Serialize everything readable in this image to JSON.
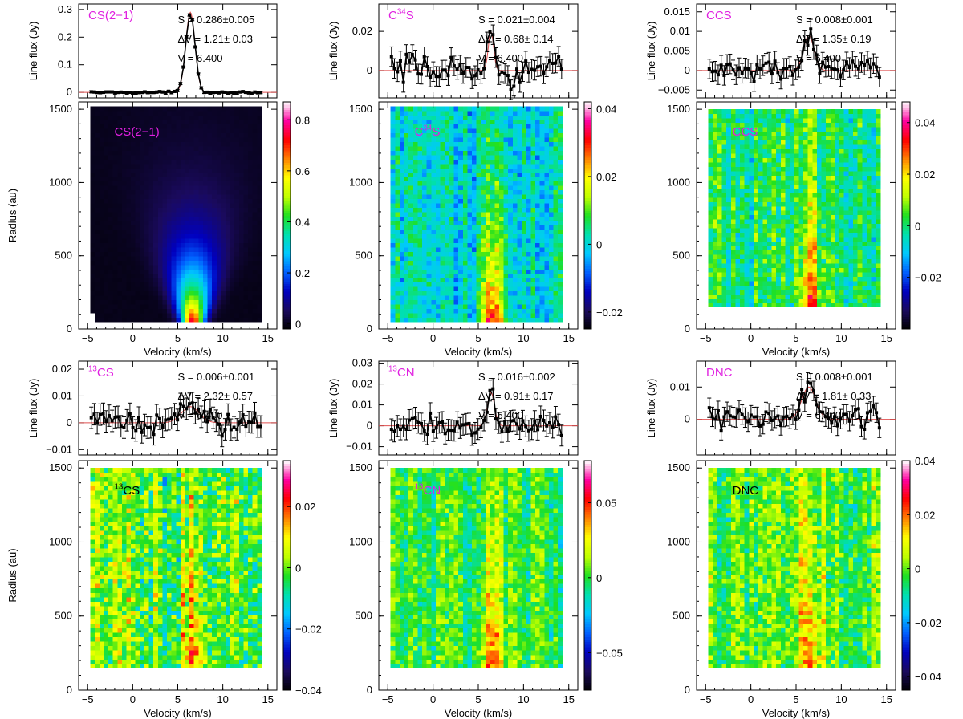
{
  "figure": {
    "spectrum_ylabel": "Line flux (Jy)",
    "map_ylabel": "Radius (au)",
    "map_xlabel": "Velocity (km/s)",
    "xlim": [
      -6,
      16
    ],
    "x_ticks": [
      -5,
      0,
      5,
      10,
      15
    ],
    "map_ylim": [
      0,
      1550
    ],
    "map_y_ticks": [
      0,
      500,
      1000,
      1500
    ],
    "line_label_color": "#e020e0",
    "fit_color": "#e05050",
    "colormap": [
      "#000000",
      "#1a0a5e",
      "#0000c0",
      "#0060ff",
      "#00c8ff",
      "#00e0b0",
      "#20e020",
      "#c0ff00",
      "#ffff00",
      "#ff8000",
      "#ff0000",
      "#ff00a0",
      "#ffffff"
    ]
  },
  "chart_data": [
    {
      "type": "line",
      "label": "CS(2−1)",
      "label_color": "#e020e0",
      "ylabel": "Line flux (Jy)",
      "xlim": [
        -6,
        16
      ],
      "ylim": [
        -0.02,
        0.32
      ],
      "y_ticks": [
        0,
        0.1,
        0.2,
        0.3
      ],
      "y_tick_labels": [
        "0",
        "0.1",
        "0.2",
        "0.3"
      ],
      "fit_lines": [
        "S  =  0.286±0.005",
        "ΔV  =   1.21± 0.03",
        "V  =   6.400"
      ],
      "fit": {
        "S": 0.286,
        "dV": 1.21,
        "V": 6.4
      },
      "peak": {
        "v": 6.4,
        "amp": 0.29,
        "width": 1.21
      },
      "noise": 0.002,
      "errbar": 0.004
    },
    {
      "type": "line",
      "label_pre": "C",
      "label_sup": "34",
      "label_post": "S",
      "label_color": "#e020e0",
      "ylabel": "Line flux (Jy)",
      "xlim": [
        -6,
        16
      ],
      "ylim": [
        -0.014,
        0.034
      ],
      "y_ticks": [
        0,
        0.02
      ],
      "y_tick_labels": [
        "0",
        "0.02"
      ],
      "fit_lines": [
        "S  =  0.021±0.004",
        "ΔV  =   0.68± 0.14",
        "V  =   6.400"
      ],
      "fit": {
        "S": 0.021,
        "dV": 0.68,
        "V": 6.4
      },
      "peak": {
        "v": 6.4,
        "amp": 0.02,
        "width": 0.68
      },
      "noise": 0.005,
      "errbar": 0.005
    },
    {
      "type": "line",
      "label": "CCS",
      "label_color": "#e020e0",
      "ylabel": "Line flux (Jy)",
      "xlim": [
        -6,
        16
      ],
      "ylim": [
        -0.007,
        0.017
      ],
      "y_ticks": [
        -0.005,
        0,
        0.005,
        0.01,
        0.015
      ],
      "y_tick_labels": [
        "−0.005",
        "0",
        "0.005",
        "0.01",
        "0.015"
      ],
      "fit_lines": [
        "S  =  0.008±0.001",
        "ΔV  =   1.35± 0.19",
        "V  =   6.400"
      ],
      "fit": {
        "S": 0.008,
        "dV": 1.35,
        "V": 6.4
      },
      "peak": {
        "v": 6.4,
        "amp": 0.009,
        "width": 1.35
      },
      "noise": 0.0018,
      "errbar": 0.0025
    },
    {
      "type": "line",
      "label_pre": "",
      "label_sup": "13",
      "label_post": "CS",
      "label_color": "#e020e0",
      "ylabel": "Line flux (Jy)",
      "xlim": [
        -6,
        16
      ],
      "ylim": [
        -0.012,
        0.023
      ],
      "y_ticks": [
        -0.01,
        0,
        0.01,
        0.02
      ],
      "y_tick_labels": [
        "−0.01",
        "0",
        "0.01",
        "0.02"
      ],
      "fit_lines": [
        "S  =  0.006±0.001",
        "ΔV  =   2.32± 0.57",
        "V  =   6.400"
      ],
      "fit": {
        "S": 0.006,
        "dV": 2.32,
        "V": 6.4
      },
      "peak": {
        "v": 6.4,
        "amp": 0.006,
        "width": 2.32
      },
      "noise": 0.003,
      "errbar": 0.004
    },
    {
      "type": "line",
      "label_pre": "",
      "label_sup": "13",
      "label_post": "CN",
      "label_color": "#e020e0",
      "ylabel": "Line flux (Jy)",
      "xlim": [
        -6,
        16
      ],
      "ylim": [
        -0.014,
        0.031
      ],
      "y_ticks": [
        -0.01,
        0,
        0.01,
        0.02,
        0.03
      ],
      "y_tick_labels": [
        "−0.01",
        "0",
        "0.01",
        "0.02",
        "0.03"
      ],
      "fit_lines": [
        "S  =  0.016±0.002",
        "ΔV  =   0.91± 0.17",
        "V  =   6.400"
      ],
      "fit": {
        "S": 0.016,
        "dV": 0.91,
        "V": 6.4
      },
      "peak": {
        "v": 6.4,
        "amp": 0.016,
        "width": 0.91
      },
      "noise": 0.003,
      "errbar": 0.005
    },
    {
      "type": "line",
      "label": "DNC",
      "label_color": "#e020e0",
      "ylabel": "Line flux (Jy)",
      "xlim": [
        -6,
        16
      ],
      "ylim": [
        -0.011,
        0.018
      ],
      "y_ticks": [
        0,
        0.01
      ],
      "y_tick_labels": [
        "0",
        "0.01"
      ],
      "fit_lines": [
        "S  =  0.008±0.001",
        "ΔV  =   1.81± 0.33",
        "V  =   6.400"
      ],
      "fit": {
        "S": 0.008,
        "dV": 1.81,
        "V": 6.4
      },
      "peak": {
        "v": 6.4,
        "amp": 0.01,
        "width": 1.81
      },
      "noise": 0.0025,
      "errbar": 0.003
    },
    {
      "type": "heatmap",
      "label": "CS(2−1)",
      "label_color": "#e020e0",
      "xlabel": "Velocity (km/s)",
      "ylabel": "Radius (au)",
      "xlim": [
        -6,
        16
      ],
      "ylim": [
        0,
        1550
      ],
      "cmin": -0.02,
      "cmax": 0.87,
      "cbar_ticks": [
        0,
        0.2,
        0.4,
        0.6,
        0.8
      ],
      "cbar_tick_labels": [
        "0",
        "0.2",
        "0.4",
        "0.6",
        "0.8"
      ],
      "v_range": [
        -4.7,
        14.3
      ],
      "r_range": [
        50,
        1500
      ],
      "shape": "narrowing",
      "peak_v": 6.4,
      "peak_amp": 0.85,
      "noise": 0.005
    },
    {
      "type": "heatmap",
      "label_pre": "C",
      "label_sup": "34",
      "label_post": "S",
      "label_color": "#e020e0",
      "xlabel": "Velocity (km/s)",
      "xlim": [
        -6,
        16
      ],
      "ylim": [
        0,
        1550
      ],
      "cmin": -0.025,
      "cmax": 0.042,
      "cbar_ticks": [
        -0.02,
        0,
        0.02,
        0.04
      ],
      "cbar_tick_labels": [
        "−0.02",
        "0",
        "0.02",
        "0.04"
      ],
      "v_range": [
        -4.7,
        14.3
      ],
      "r_range": [
        50,
        1500
      ],
      "shape": "rect",
      "peak_v": 6.4,
      "peak_amp": 0.038,
      "noise": 0.006
    },
    {
      "type": "heatmap",
      "label": "CCS",
      "label_color": "#e020e0",
      "xlabel": "Velocity (km/s)",
      "xlim": [
        -6,
        16
      ],
      "ylim": [
        0,
        1550
      ],
      "cmin": -0.04,
      "cmax": 0.048,
      "cbar_ticks": [
        -0.02,
        0,
        0.02,
        0.04
      ],
      "cbar_tick_labels": [
        "−0.02",
        "0",
        "0.02",
        "0.04"
      ],
      "v_range": [
        -4.7,
        14.3
      ],
      "r_range": [
        150,
        1500
      ],
      "shape": "rect",
      "peak_v": 6.4,
      "peak_amp": 0.035,
      "noise": 0.008
    },
    {
      "type": "heatmap",
      "label_pre": "",
      "label_sup": "13",
      "label_post": "CS",
      "label_color": "#000000",
      "xlabel": "Velocity (km/s)",
      "ylabel": "Radius (au)",
      "xlim": [
        -6,
        16
      ],
      "ylim": [
        0,
        1550
      ],
      "cmin": -0.04,
      "cmax": 0.035,
      "cbar_ticks": [
        -0.04,
        -0.02,
        0,
        0.02
      ],
      "cbar_tick_labels": [
        "−0.04",
        "−0.02",
        "0",
        "0.02"
      ],
      "v_range": [
        -4.7,
        14.3
      ],
      "r_range": [
        150,
        1500
      ],
      "shape": "rect",
      "peak_v": 6.4,
      "peak_amp": 0.025,
      "noise": 0.01
    },
    {
      "type": "heatmap",
      "label_pre": "",
      "label_sup": "13",
      "label_post": "CN",
      "label_color": "#e020e0",
      "xlabel": "Velocity (km/s)",
      "xlim": [
        -6,
        16
      ],
      "ylim": [
        0,
        1550
      ],
      "cmin": -0.075,
      "cmax": 0.078,
      "cbar_ticks": [
        -0.05,
        0,
        0.05
      ],
      "cbar_tick_labels": [
        "−0.05",
        "0",
        "0.05"
      ],
      "v_range": [
        -4.7,
        14.3
      ],
      "r_range": [
        150,
        1500
      ],
      "shape": "rect",
      "peak_v": 6.4,
      "peak_amp": 0.06,
      "noise": 0.014
    },
    {
      "type": "heatmap",
      "label": "DNC",
      "label_color": "#000000",
      "xlabel": "Velocity (km/s)",
      "xlim": [
        -6,
        16
      ],
      "ylim": [
        0,
        1550
      ],
      "cmin": -0.045,
      "cmax": 0.04,
      "cbar_ticks": [
        -0.04,
        -0.02,
        0,
        0.02,
        0.04
      ],
      "cbar_tick_labels": [
        "−0.04",
        "−0.02",
        "0",
        "0.02",
        "0.04"
      ],
      "v_range": [
        -4.7,
        14.3
      ],
      "r_range": [
        150,
        1500
      ],
      "shape": "rect",
      "peak_v": 6.4,
      "peak_amp": 0.03,
      "noise": 0.009
    }
  ]
}
